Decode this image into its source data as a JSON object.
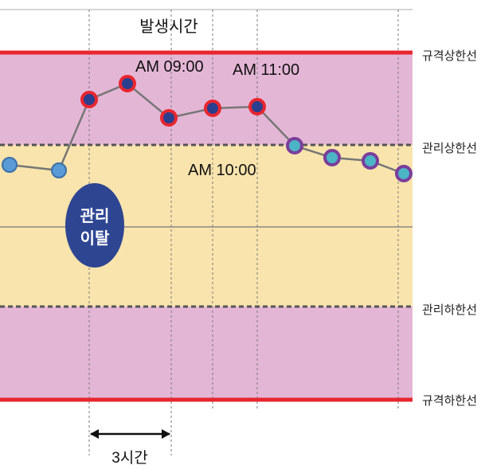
{
  "title": "발생시간",
  "limit_lines": {
    "upper_spec": "규격상한선",
    "upper_control": "관리상한선",
    "lower_control": "관리하한선",
    "lower_spec": "규격하한선"
  },
  "annotations": {
    "am_09": "AM 09:00",
    "am_10": "AM 10:00",
    "am_11": "AM 11:00"
  },
  "deviation_badge": {
    "line1": "관리",
    "line2": "이탈"
  },
  "span_label": "3시간",
  "colors": {
    "spec_band": "#e4b6d6",
    "control_band": "#f9e4ad",
    "spec_line": "#e8262e",
    "control_line": "#555555",
    "trend_line": "#777777",
    "badge": "#2e4592",
    "point_in_control_fill": "#5b9bd5",
    "point_out_of_control_fill": "#2b3f8f",
    "point_out_of_control_ring": "#e8262e",
    "point_recovery_fill": "#4bb4c6",
    "point_recovery_ring": "#7a3e9c"
  }
}
